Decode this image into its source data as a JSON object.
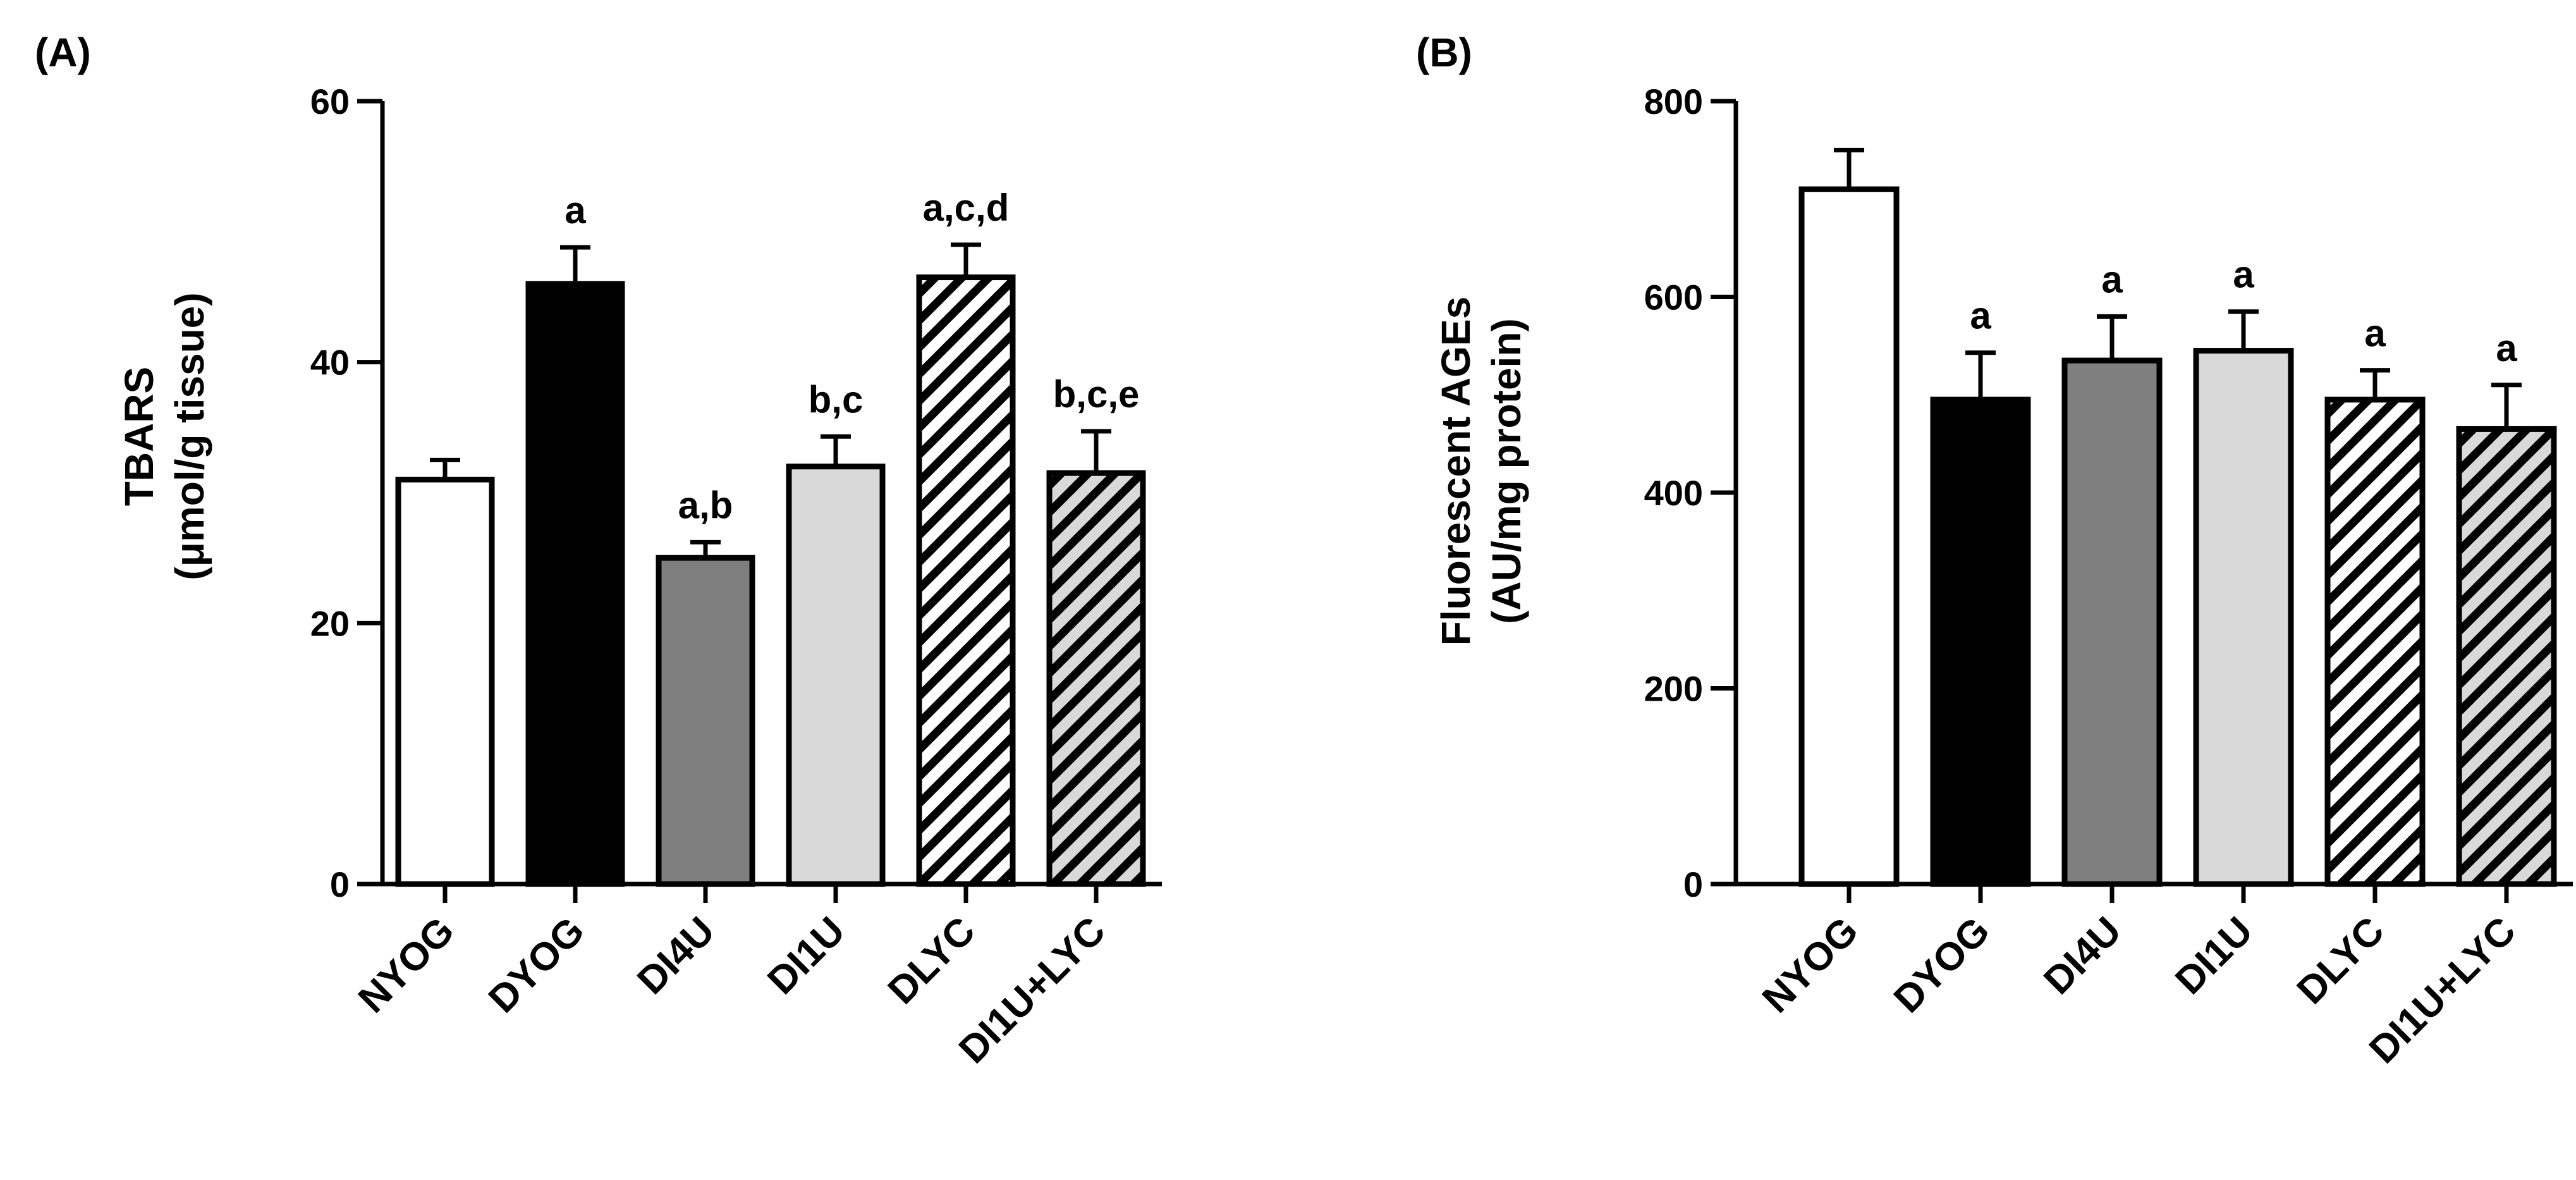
{
  "chart_data": [
    {
      "type": "bar",
      "panel_label": "(A)",
      "categories": [
        "NYOG",
        "DYOG",
        "DI4U",
        "DI1U",
        "DLYC",
        "DI1U+LYC"
      ],
      "values": [
        31,
        46,
        25,
        32,
        46.5,
        31.5
      ],
      "errors": [
        1.5,
        2.8,
        1.2,
        2.3,
        2.5,
        3.2
      ],
      "significance": [
        "",
        "a",
        "a,b",
        "b,c",
        "a,c,d",
        "b,c,e"
      ],
      "fills": [
        "white",
        "black",
        "darkgray",
        "lightgray",
        "hatch-white",
        "hatch-gray"
      ],
      "ylabel": "TBARS",
      "ylabel_units": "(μmol/g tissue)",
      "ylim": [
        0,
        60
      ],
      "yticks": [
        0,
        20,
        40,
        60
      ],
      "xlabel": ""
    },
    {
      "type": "bar",
      "panel_label": "(B)",
      "categories": [
        "NYOG",
        "DYOG",
        "DI4U",
        "DI1U",
        "DLYC",
        "DI1U+LYC"
      ],
      "values": [
        710,
        495,
        535,
        545,
        495,
        465
      ],
      "errors": [
        40,
        48,
        45,
        40,
        30,
        45
      ],
      "significance": [
        "",
        "a",
        "a",
        "a",
        "a",
        "a"
      ],
      "fills": [
        "white",
        "black",
        "darkgray",
        "lightgray",
        "hatch-white",
        "hatch-gray"
      ],
      "ylabel": "Fluorescent AGEs",
      "ylabel_units": "(AU/mg protein)",
      "ylim": [
        0,
        800
      ],
      "yticks": [
        0,
        200,
        400,
        600,
        800
      ],
      "xlabel": ""
    }
  ],
  "colors": {
    "white": "#ffffff",
    "black": "#000000",
    "darkgray": "#7f7f7f",
    "lightgray": "#d9d9d9",
    "hatch-white": "#ffffff",
    "hatch-gray": "#d9d9d9",
    "stroke": "#000000"
  }
}
